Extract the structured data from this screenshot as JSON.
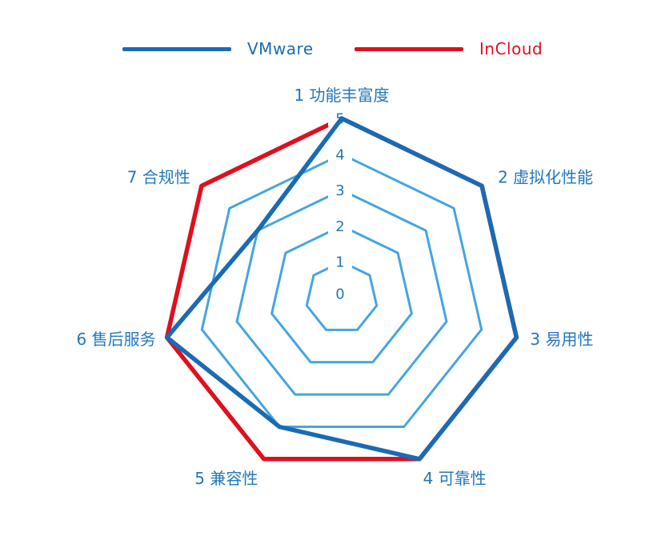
{
  "page": {
    "background": "#ffffff"
  },
  "legend": {
    "position": "top",
    "items": [
      {
        "label": "VMware",
        "color": "#1A6BB3"
      },
      {
        "label": "InCloud",
        "color": "#DF101E"
      }
    ]
  },
  "chart_data": {
    "type": "radar",
    "title": "",
    "indicators": [
      "1 功能丰富度",
      "2 虚拟化性能",
      "3 易用性",
      "4 可靠性",
      "5 兼容性",
      "6 售后服务",
      "7 合规性"
    ],
    "scale": {
      "min": 0,
      "max": 5,
      "tick_labels": [
        "0",
        "1",
        "2",
        "3",
        "4",
        "5"
      ]
    },
    "series": [
      {
        "name": "VMware",
        "color": "#1A6BB3",
        "values": [
          5,
          5,
          5,
          5,
          4,
          5,
          3
        ]
      },
      {
        "name": "InCloud",
        "color": "#DF101E",
        "values": [
          5,
          5,
          5,
          5,
          5,
          5,
          5
        ]
      }
    ],
    "grid": {
      "shape": "polygon",
      "levels": 5,
      "color": "#45A5E0"
    },
    "label_color": "#2377BE",
    "legend_position": "top"
  }
}
